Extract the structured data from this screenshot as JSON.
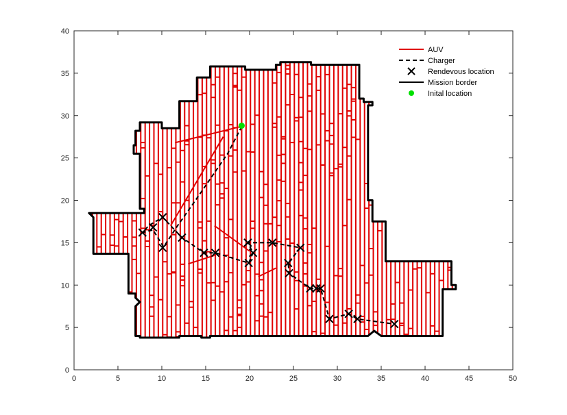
{
  "chart_data": {
    "type": "line",
    "title": "",
    "xlabel": "",
    "ylabel": "",
    "xlim": [
      0,
      50
    ],
    "ylim": [
      0,
      40
    ],
    "x_ticks": [
      0,
      5,
      10,
      15,
      20,
      25,
      30,
      35,
      40,
      45,
      50
    ],
    "y_ticks": [
      0,
      5,
      10,
      15,
      20,
      25,
      30,
      35,
      40
    ],
    "grid": false,
    "legend_position": "top-right",
    "colors": {
      "auv": "#e00000",
      "charger": "#000000",
      "rendezvous": "#000000",
      "border": "#000000",
      "initial": "#00e000"
    },
    "legend": [
      {
        "label": "AUV",
        "style": "solid-red-line"
      },
      {
        "label": "Charger",
        "style": "dashed-black-line"
      },
      {
        "label": "Rendevous location",
        "style": "black-x-marker"
      },
      {
        "label": "Mission border",
        "style": "solid-black-line"
      },
      {
        "label": "Inital location",
        "style": "green-dot-marker"
      }
    ],
    "series": [
      {
        "name": "Mission border",
        "x": [
          1.7,
          2.2,
          2.2,
          6.2,
          6.2,
          7.0,
          7.0,
          7.5,
          7.0,
          7.0,
          7.5,
          7.5,
          12.0,
          12.0,
          14.5,
          14.5,
          15.5,
          15.5,
          33.5,
          34.2,
          35.0,
          35.5,
          42.0,
          42.0,
          43.5,
          43.5,
          43.0,
          43.0,
          35.5,
          35.5,
          34.0,
          34.0,
          33.5,
          33.5,
          34.0,
          34.0,
          33.0,
          33.0,
          32.5,
          32.5,
          27.0,
          27.0,
          23.5,
          23.5,
          23.0,
          23.0,
          19.5,
          19.5,
          15.5,
          15.5,
          14.0,
          14.0,
          12.0,
          12.0,
          10.0,
          10.0,
          7.5,
          7.5,
          7.0,
          7.0,
          6.8,
          6.8,
          7.5,
          7.5,
          8.0,
          8.0,
          1.7
        ],
        "y": [
          18.5,
          18.0,
          13.7,
          13.7,
          9.0,
          9.0,
          8.5,
          8.0,
          7.5,
          4.0,
          4.0,
          3.8,
          3.8,
          4.0,
          4.0,
          3.8,
          3.8,
          4.0,
          4.0,
          4.6,
          4.0,
          4.0,
          4.0,
          9.5,
          9.5,
          10.0,
          10.0,
          12.8,
          12.8,
          17.5,
          17.5,
          20.0,
          20.0,
          31.2,
          31.2,
          31.6,
          31.6,
          32.0,
          32.0,
          36.0,
          36.0,
          36.3,
          36.3,
          36.0,
          36.0,
          35.4,
          35.4,
          35.8,
          35.8,
          34.5,
          34.5,
          31.7,
          31.7,
          28.5,
          28.5,
          29.2,
          29.2,
          28.2,
          28.2,
          26.5,
          26.5,
          25.5,
          25.5,
          19.0,
          19.0,
          18.5,
          18.5
        ]
      },
      {
        "name": "Charger",
        "x": [
          19.1,
          17.5,
          15.5,
          13.5,
          11.8,
          10.2,
          9.0,
          7.8,
          8.5,
          9.3,
          10.1,
          12.3,
          14.8,
          16.1,
          19.9,
          20.4,
          19.8,
          22.6,
          25.8,
          24.4,
          24.5,
          26.9,
          27.6,
          28.1,
          29.1,
          31.3,
          32.3,
          36.5
        ],
        "y": [
          28.7,
          25.5,
          22.5,
          19.5,
          17.0,
          14.5,
          16.5,
          16.2,
          17.0,
          17.5,
          18.0,
          15.6,
          13.8,
          13.8,
          12.6,
          13.8,
          15.0,
          15.0,
          14.4,
          12.6,
          11.4,
          9.6,
          9.6,
          9.6,
          6.0,
          6.6,
          6.0,
          5.4
        ]
      }
    ],
    "rendezvous_locations": {
      "x": [
        7.8,
        9.0,
        10.1,
        10.1,
        12.3,
        14.8,
        16.1,
        19.8,
        19.9,
        20.4,
        22.6,
        25.8,
        24.4,
        24.5,
        26.9,
        27.6,
        28.1,
        29.1,
        31.3,
        32.3,
        36.5
      ],
      "y": [
        16.2,
        16.8,
        18.0,
        14.4,
        15.6,
        13.8,
        13.8,
        15.0,
        12.6,
        13.8,
        15.0,
        14.4,
        12.6,
        11.4,
        9.6,
        9.6,
        9.6,
        6.0,
        6.6,
        6.0,
        5.4
      ]
    },
    "initial_location": {
      "x": 19.1,
      "y": 28.8
    }
  }
}
